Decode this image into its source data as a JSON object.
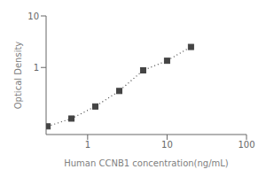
{
  "chart_data": {
    "type": "line",
    "x": [
      0.313,
      0.625,
      1.25,
      2.5,
      5.0,
      10.0,
      20.0
    ],
    "values": [
      0.072,
      0.102,
      0.175,
      0.35,
      0.88,
      1.35,
      2.5
    ],
    "xlabel": "Human CCNB1 concentration(ng/mL)",
    "ylabel": "Optical Density",
    "log": true,
    "xlim": [
      0.3,
      100
    ],
    "ylim": [
      0.05,
      10
    ],
    "xticks": [
      1,
      10,
      100
    ],
    "yticks": [
      1,
      10
    ],
    "color": "#444444",
    "marker": "square",
    "line_style": "dotted",
    "grid": false
  }
}
